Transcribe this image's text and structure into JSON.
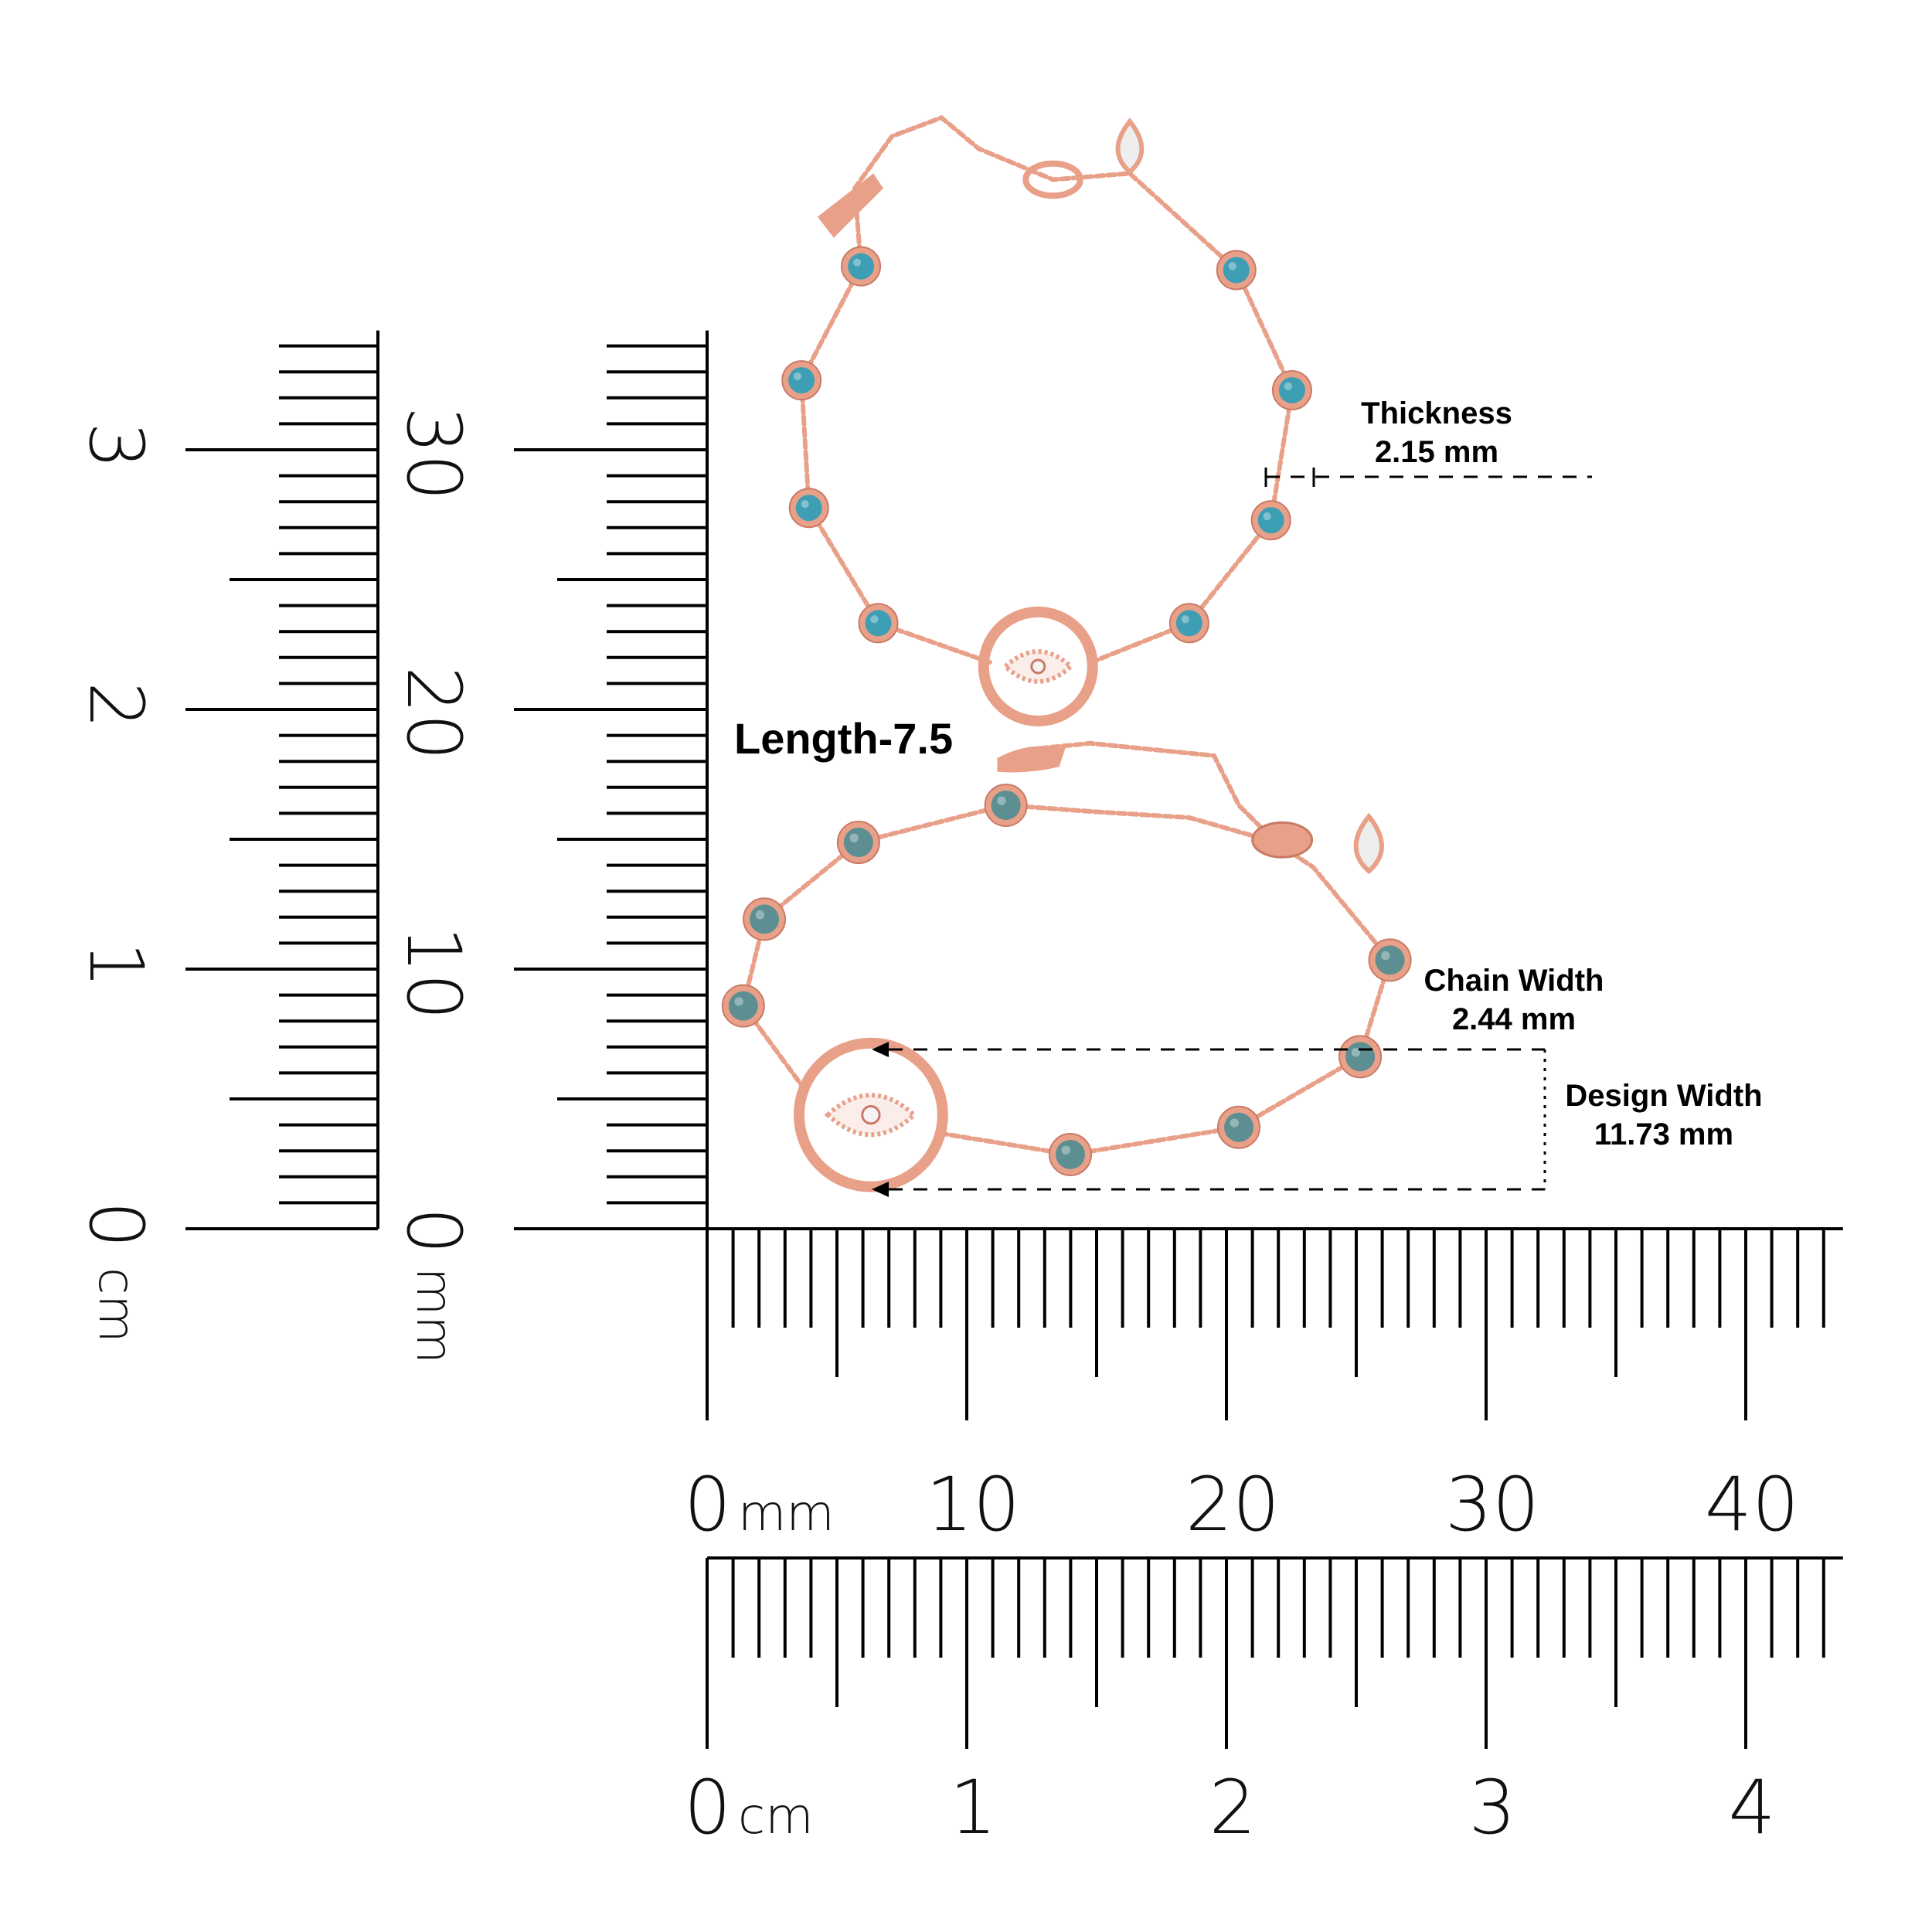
{
  "annotations": {
    "length": "Length-7.5",
    "thickness_label": "Thickness",
    "thickness_value": "2.15 mm",
    "chain_width_label": "Chain Width",
    "chain_width_value": "2.44 mm",
    "design_width_label": "Design Width",
    "design_width_value": "11.73 mm"
  },
  "vertical_rulers": {
    "cm_labels": [
      "0",
      "1",
      "2",
      "3"
    ],
    "cm_unit": "cm",
    "mm_labels": [
      "0",
      "10",
      "20",
      "30"
    ],
    "mm_unit": "mm",
    "length_mm": 34
  },
  "horizontal_rulers": {
    "mm_labels": [
      "0",
      "10",
      "20",
      "30",
      "40"
    ],
    "mm_unit": "mm",
    "cm_labels": [
      "0",
      "1",
      "2",
      "3",
      "4"
    ],
    "cm_unit": "cm",
    "length_mm": 43
  },
  "colors": {
    "rose_gold": "#e9a088",
    "rose_gold_dark": "#c97a66",
    "stone_top": "#3e9fb4",
    "stone_bottom": "#5d8f92",
    "ink": "#000000"
  }
}
